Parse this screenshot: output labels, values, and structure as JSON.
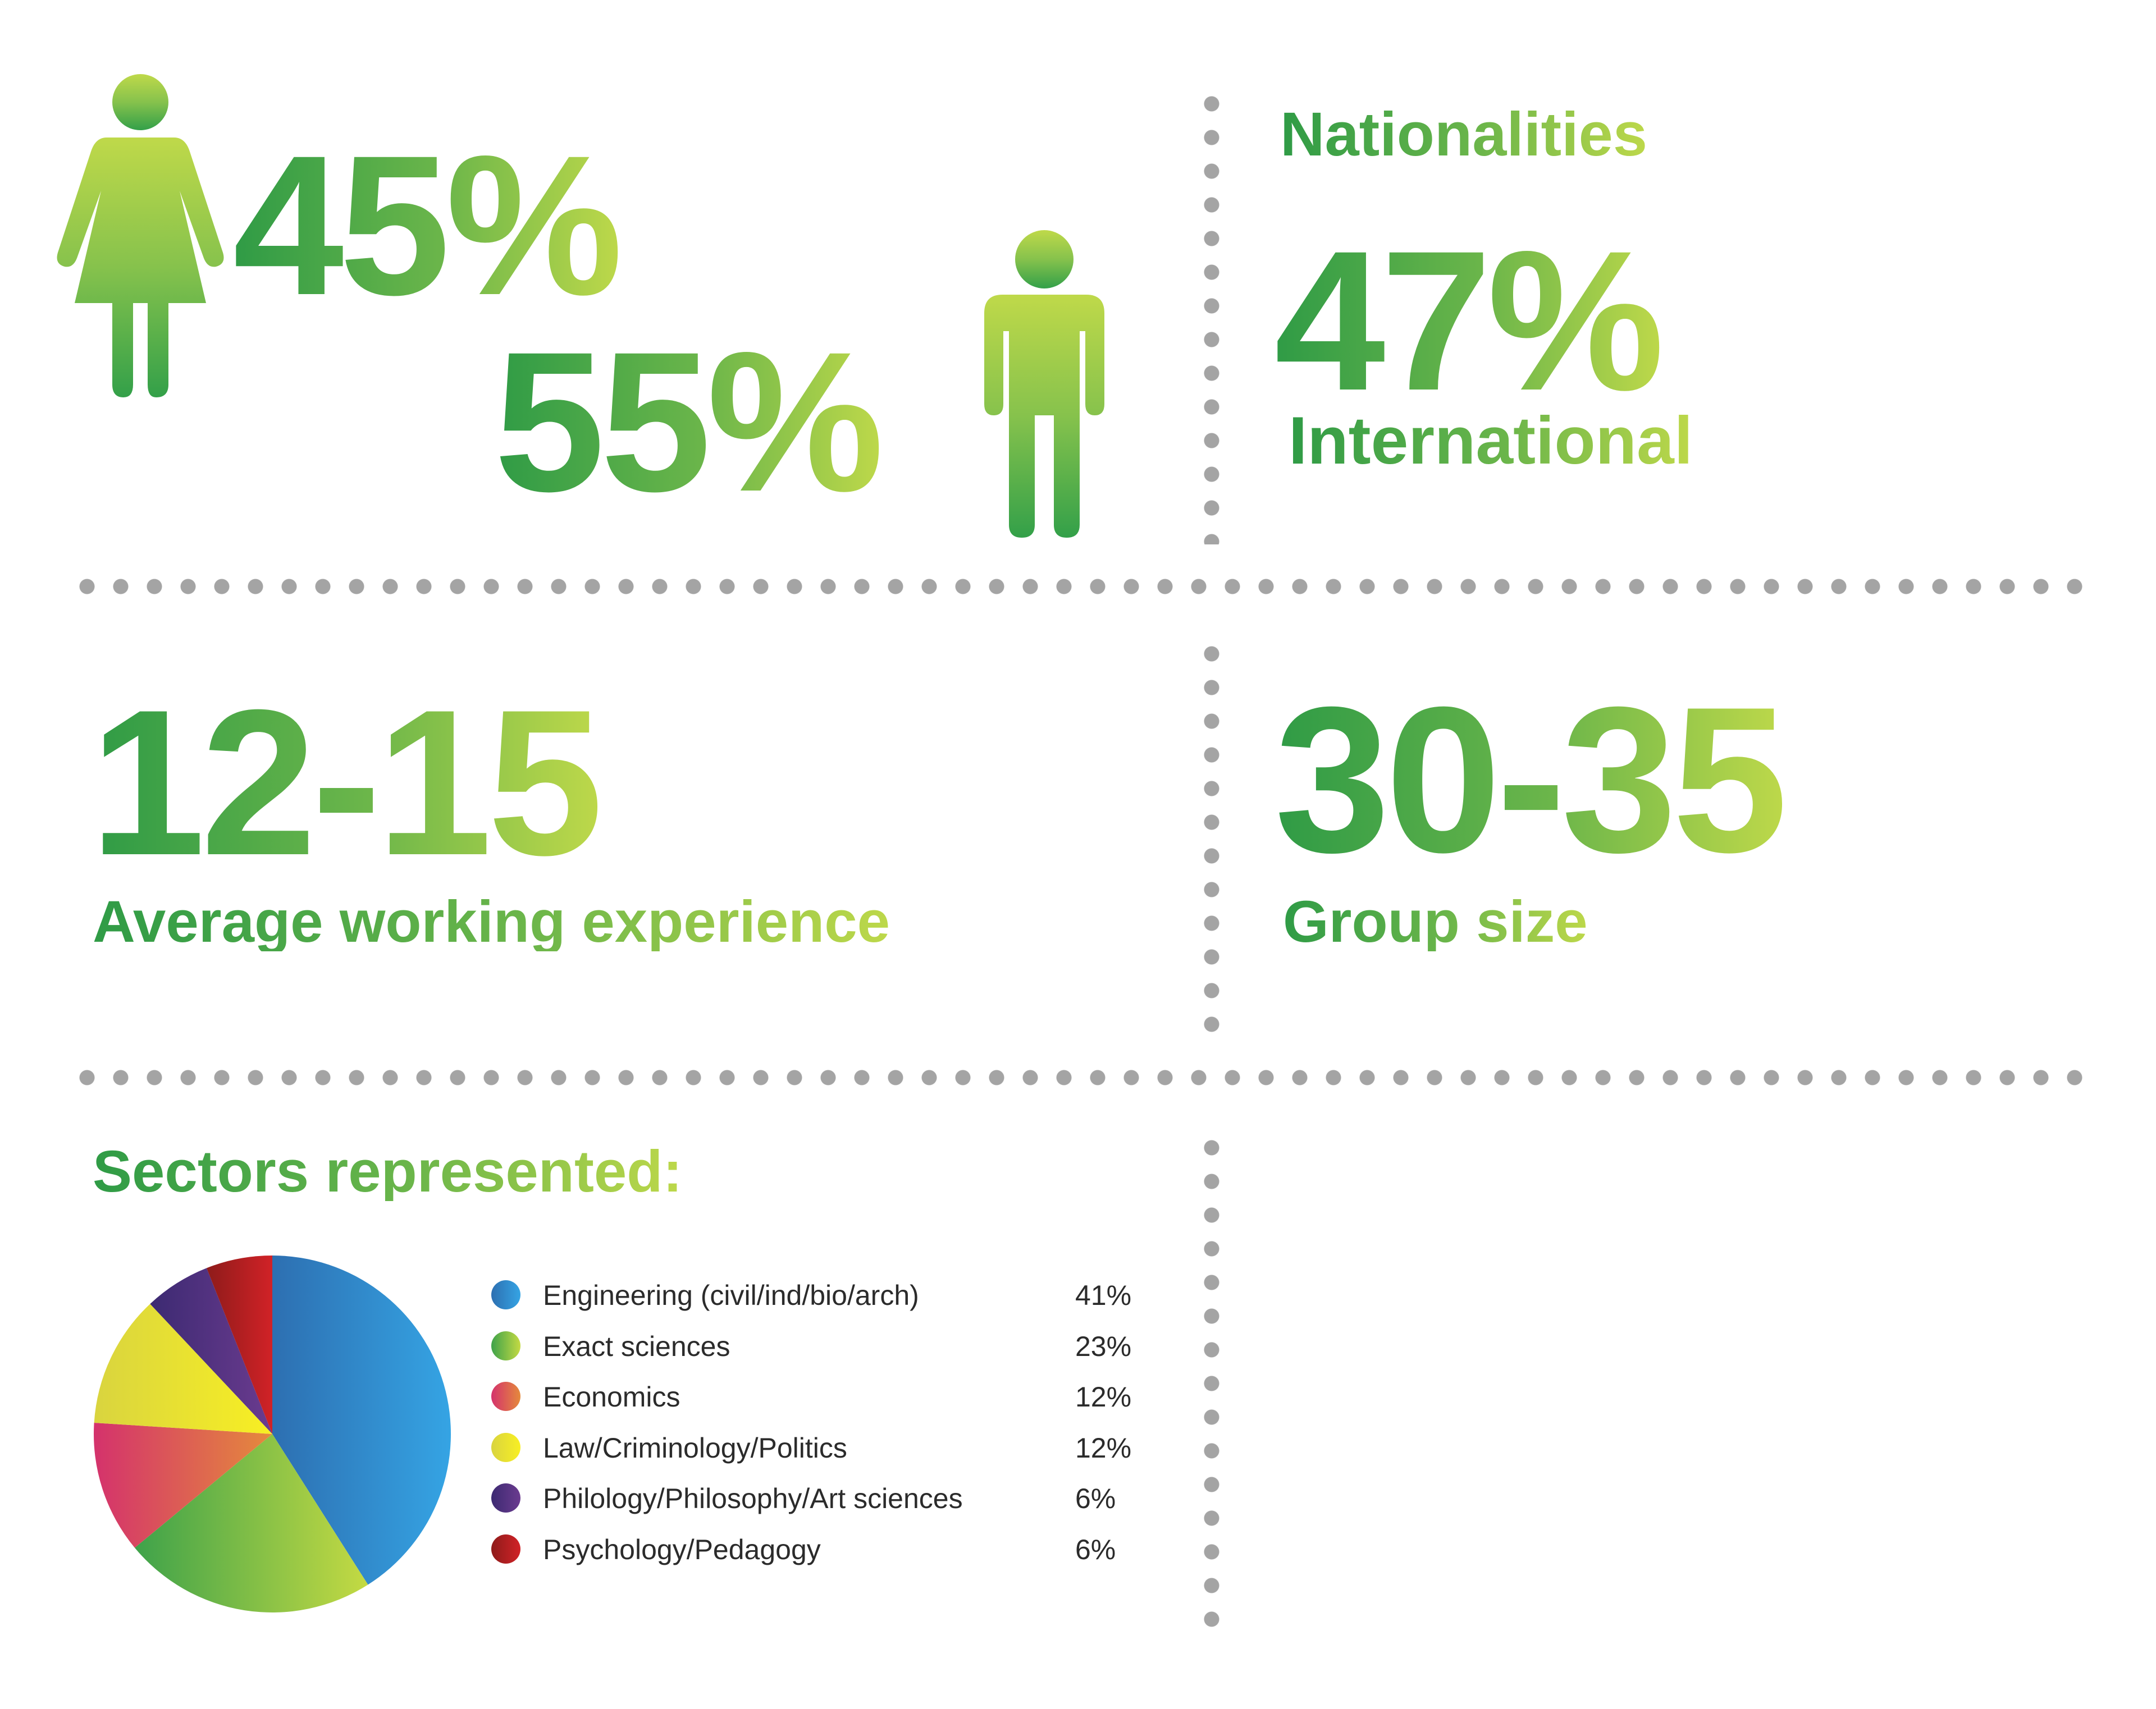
{
  "gender": {
    "female": {
      "value": "45%",
      "icon": "female-person-icon"
    },
    "male": {
      "value": "55%",
      "icon": "male-person-icon"
    }
  },
  "nationalities": {
    "title": "Nationalities",
    "value": "47%",
    "label": "International"
  },
  "experience": {
    "value": "12-15",
    "label": "Average working experience"
  },
  "group_size": {
    "value": "30-35",
    "label": "Group size"
  },
  "sectors": {
    "title": "Sectors represented:"
  },
  "colors": {
    "green_dark": "#2f9b46",
    "green_mid": "#6cb64a",
    "green_light": "#bdd84a",
    "dot_gray": "#a4a4a4"
  },
  "chart_data": {
    "type": "pie",
    "title": "",
    "categories": [
      "Engineering (civil/ind/bio/arch)",
      "Exact sciences",
      "Economics",
      "Law/Criminology/Politics",
      "Philology/Philosophy/Art sciences",
      "Psychology/Pedagogy"
    ],
    "value_labels": [
      "41%",
      "23%",
      "12%",
      "12%",
      "6%",
      "6%"
    ],
    "values": [
      41,
      23,
      12,
      12,
      6,
      6
    ],
    "colors": [
      [
        "#2d6fb1",
        "#35a4e4"
      ],
      [
        "#3ea24a",
        "#c4da43"
      ],
      [
        "#d4326c",
        "#e58a3c"
      ],
      [
        "#d9d43f",
        "#f8ef23"
      ],
      [
        "#3c2a72",
        "#6b3b8f"
      ],
      [
        "#8e1b1a",
        "#d12227"
      ]
    ],
    "start_angle_deg": 0,
    "direction": "clockwise",
    "legend_position": "right"
  }
}
